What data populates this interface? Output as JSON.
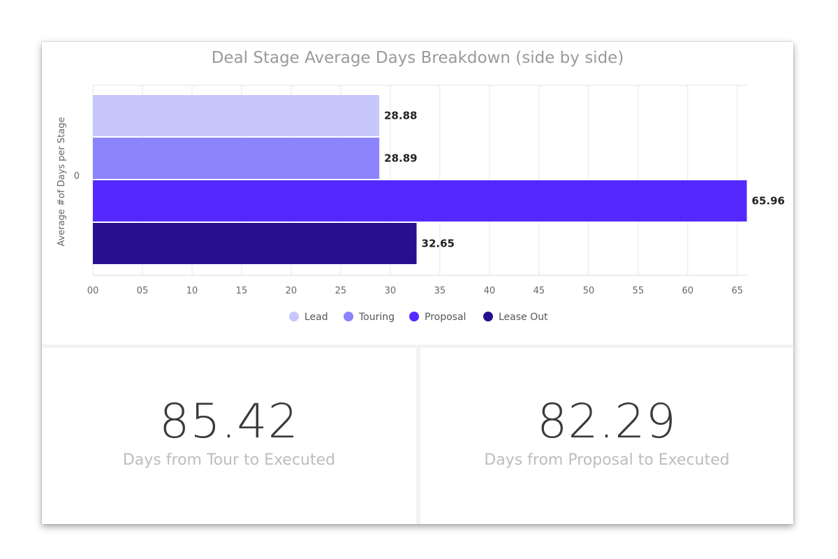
{
  "chart_data": {
    "type": "bar",
    "orientation": "horizontal",
    "title": "Deal Stage Average Days Breakdown (side by side)",
    "ylabel": "Average #of Days per Stage",
    "xlabel": "",
    "categories": [
      "0"
    ],
    "xlim": [
      0,
      66
    ],
    "x_ticks": [
      "00",
      "05",
      "10",
      "15",
      "20",
      "25",
      "30",
      "35",
      "40",
      "45",
      "50",
      "55",
      "60",
      "65"
    ],
    "x_tick_values": [
      0,
      5,
      10,
      15,
      20,
      25,
      30,
      35,
      40,
      45,
      50,
      55,
      60,
      65
    ],
    "grid": true,
    "legend_position": "bottom",
    "series": [
      {
        "name": "Lead",
        "values": [
          28.88
        ],
        "label": "28.88",
        "color": "#c8c7fc"
      },
      {
        "name": "Touring",
        "values": [
          28.89
        ],
        "label": "28.89",
        "color": "#8c84fb"
      },
      {
        "name": "Proposal",
        "values": [
          65.96
        ],
        "label": "65.96",
        "color": "#5528fe"
      },
      {
        "name": "Lease Out",
        "values": [
          32.65
        ],
        "label": "32.65",
        "color": "#26108f"
      }
    ]
  },
  "kpis": {
    "tour_to_executed": {
      "value": "85.42",
      "label": "Days from Tour to Executed"
    },
    "proposal_to_executed": {
      "value": "82.29",
      "label": "Days from Proposal to Executed"
    }
  }
}
